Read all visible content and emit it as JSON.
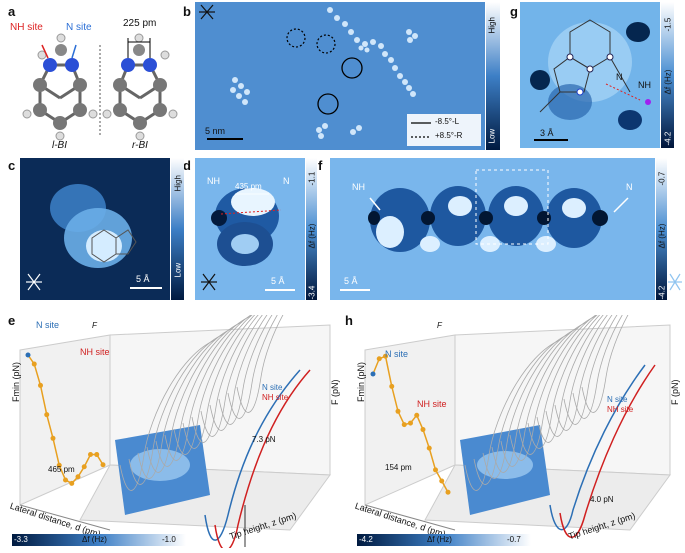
{
  "panels": {
    "a": "a",
    "b": "b",
    "c": "c",
    "d": "d",
    "e": "e",
    "f": "f",
    "g": "g",
    "h": "h"
  },
  "panel_a": {
    "nh_site": "NH site",
    "n_site": "N site",
    "distance": "225 pm",
    "left_name": "l-BI",
    "right_name": "r-BI"
  },
  "panel_b": {
    "scale": "5 nm",
    "cbar_high": "High",
    "cbar_low": "Low",
    "legend_solid": "-8.5°-L",
    "legend_dashed": "+8.5°-R"
  },
  "panel_c": {
    "scale": "5 Å",
    "cbar_high": "High",
    "cbar_low": "Low"
  },
  "panel_d": {
    "nh": "NH",
    "n": "N",
    "distance": "435 pm",
    "scale": "5 Å",
    "cbar_top": "-1.1",
    "cbar_bottom": "-3.4",
    "cbar_label": "Δf (Hz)"
  },
  "panel_f": {
    "nh": "NH",
    "n": "N",
    "scale": "5 Å",
    "cbar_top": "-0.7",
    "cbar_bottom": "-4.2",
    "cbar_label": "Δf (Hz)"
  },
  "panel_g": {
    "nh": "NH",
    "n": "N",
    "scale": "3 Å",
    "cbar_top": "-1.5",
    "cbar_bottom": "-4.2",
    "cbar_label": "Δf (Hz)"
  },
  "panel_e": {
    "ylabel_left": "Fmin (pN)",
    "ylabel_right": "F (pN)",
    "xlabel": "Lateral distance, d (pm)",
    "zlabel": "Tip height, z (pm)",
    "n_site": "N site",
    "nh_site": "NH site",
    "distance": "465 pm",
    "force": "7.3 pN",
    "cbar_left": "-3.3",
    "cbar_mid": "Δf (Hz)",
    "cbar_right": "-1.0",
    "legend_n": "N site",
    "legend_nh": "NH site",
    "f_axis": "F"
  },
  "panel_h": {
    "ylabel_left": "Fmin (pN)",
    "ylabel_right": "F (pN)",
    "xlabel": "Lateral distance, d (pm)",
    "zlabel": "Tip height, z (pm)",
    "n_site": "N site",
    "nh_site": "NH site",
    "distance": "154 pm",
    "force": "4.0 pN",
    "cbar_left": "-4.2",
    "cbar_mid": "Δf (Hz)",
    "cbar_right": "-0.7",
    "legend_n": "N site",
    "legend_nh": "NH site",
    "f_axis": "F"
  },
  "chart_data": [
    {
      "type": "line",
      "title": "",
      "xlabel": "Lateral distance, d (pm)",
      "ylabel": "Fmin (pN)",
      "x_ticks": [
        "0",
        "200",
        "400",
        "600"
      ],
      "y_ticks": [
        "-25",
        "-30",
        "-35"
      ],
      "series": [
        {
          "name": "",
          "x": [
            0,
            40,
            80,
            120,
            160,
            200,
            240,
            280,
            320,
            360,
            400,
            440,
            480
          ],
          "values": [
            -24.5,
            -25.2,
            -27.0,
            -29.5,
            -31.5,
            -33.8,
            -35.0,
            -35.2,
            -34.5,
            -33.5,
            -32.3,
            -32.2,
            -33.0
          ]
        }
      ],
      "z_ticks": [
        "0",
        "100",
        "200",
        "300",
        "400"
      ],
      "f_ticks": [
        "0",
        "-5",
        "-10",
        "-15",
        "-20",
        "-25"
      ]
    },
    {
      "type": "line",
      "title": "",
      "xlabel": "Lateral distance, d (pm)",
      "ylabel": "Fmin (pN)",
      "x_ticks": [
        "0",
        "100",
        "200"
      ],
      "y_ticks": [
        "-42",
        "-44",
        "-46",
        "-48",
        "-50",
        "-52"
      ],
      "series": [
        {
          "name": "",
          "x": [
            0,
            20,
            40,
            60,
            80,
            100,
            120,
            140,
            160,
            180,
            200,
            220,
            240
          ],
          "values": [
            -45.5,
            -44.0,
            -43.7,
            -46.5,
            -48.8,
            -50.0,
            -49.8,
            -49.0,
            -50.3,
            -52.0,
            -54.0,
            -55.0,
            -56.0
          ]
        }
      ],
      "z_ticks": [
        "0",
        "100",
        "200",
        "300",
        "400"
      ],
      "f_ticks": [
        "0",
        "-10",
        "-20",
        "-30",
        "-40"
      ]
    }
  ]
}
